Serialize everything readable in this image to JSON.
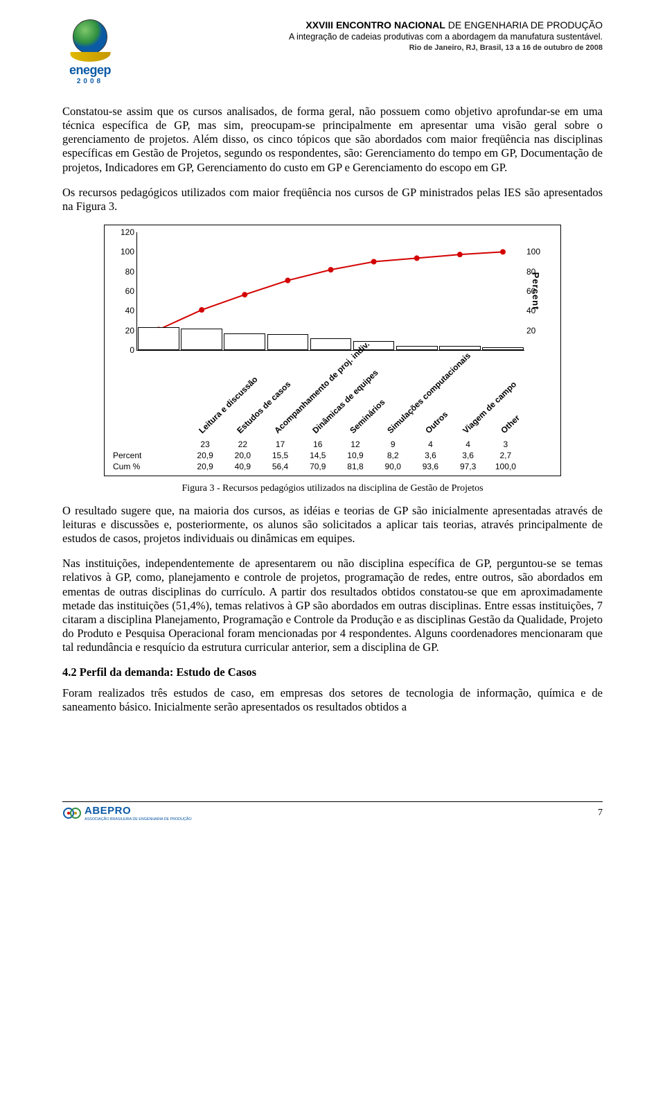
{
  "header": {
    "logo_word": "enegep",
    "logo_year": "2008",
    "line1_bold": "XXVIII ENCONTRO NACIONAL",
    "line1_rest": " DE ENGENHARIA DE PRODUÇÃO",
    "line2": "A integração de cadeias produtivas com a abordagem da manufatura sustentável.",
    "line3": "Rio de Janeiro, RJ, Brasil, 13 a 16 de outubro de 2008"
  },
  "paragraphs": {
    "p1": "Constatou-se assim que os cursos analisados, de forma geral, não possuem como objetivo aprofundar-se em uma técnica específica de GP, mas sim, preocupam-se principalmente em apresentar uma visão geral sobre o gerenciamento de projetos. Além disso, os cinco tópicos que são abordados com maior freqüência nas disciplinas específicas em Gestão de Projetos, segundo os respondentes, são: Gerenciamento do tempo em GP, Documentação de projetos, Indicadores em GP, Gerenciamento do custo em GP e Gerenciamento do escopo em GP.",
    "p2": "Os recursos pedagógicos utilizados com maior freqüência nos cursos de GP ministrados pelas IES são apresentados na Figura 3.",
    "caption": "Figura 3 - Recursos pedagógios utilizados na disciplina de Gestão de Projetos",
    "p3": "O resultado sugere que, na maioria dos cursos, as idéias e teorias de GP são inicialmente apresentadas através de leituras e discussões e, posteriormente, os alunos são solicitados a aplicar tais teorias, através principalmente de estudos de casos, projetos individuais ou dinâmicas em equipes.",
    "p4": "Nas instituições, independentemente de apresentarem ou não disciplina específica de GP, perguntou-se se temas relativos à GP, como, planejamento e controle de projetos, programação de redes, entre outros, são abordados em ementas de outras disciplinas do currículo. A partir dos resultados obtidos constatou-se que em aproximadamente metade das instituições (51,4%), temas relativos à GP são abordados em outras disciplinas. Entre essas instituições, 7 citaram a disciplina Planejamento, Programação e Controle da Produção e as disciplinas Gestão da Qualidade, Projeto do Produto e Pesquisa Operacional foram mencionadas por 4 respondentes. Alguns coordenadores mencionaram que tal redundância e resquício da estrutura curricular anterior, sem a disciplina de GP.",
    "section_title": "4.2 Perfil da demanda: Estudo de Casos",
    "p5": "Foram realizados três estudos de caso, em empresas dos setores de tecnologia de informação, química e de saneamento básico. Inicialmente serão apresentados os resultados obtidos a"
  },
  "chart": {
    "type": "pareto",
    "y_left": {
      "min": 0,
      "max": 120,
      "ticks": [
        0,
        20,
        40,
        60,
        80,
        100,
        120
      ]
    },
    "y_right": {
      "min": 0,
      "max": 100,
      "ticks": [
        20,
        40,
        60,
        80,
        100
      ],
      "label": "Percent"
    },
    "categories": [
      "Leitura e discussão",
      "Estudos de casos",
      "Acompanhamento de proj. indiv.",
      "Dinâmicas de equipes",
      "Seminários",
      "Simulações computacionais",
      "Outros",
      "Viagem de campo",
      "Other"
    ],
    "counts": [
      23,
      22,
      17,
      16,
      12,
      9,
      4,
      4,
      3
    ],
    "percent": [
      "20,9",
      "20,0",
      "15,5",
      "14,5",
      "10,9",
      "8,2",
      "3,6",
      "3,6",
      "2,7"
    ],
    "cum": [
      "20,9",
      "40,9",
      "56,4",
      "70,9",
      "81,8",
      "90,0",
      "93,6",
      "97,3",
      "100,0"
    ],
    "cum_numeric": [
      20.9,
      40.9,
      56.4,
      70.9,
      81.8,
      90.0,
      93.6,
      97.3,
      100.0
    ],
    "row_labels": {
      "percent": "Percent",
      "cum": "Cum %"
    },
    "bar_fill": "#ffffff",
    "bar_stroke": "#000000",
    "line_color": "#d40000",
    "marker_color": "#d40000",
    "line_width": 2,
    "marker_radius": 4,
    "background": "#ffffff",
    "bar_width_rel": 0.96
  },
  "footer": {
    "brand": "ABEPRO",
    "subtitle": "ASSOCIAÇÃO BRASILEIRA DE ENGENHARIA DE PRODUÇÃO",
    "page": "7"
  }
}
